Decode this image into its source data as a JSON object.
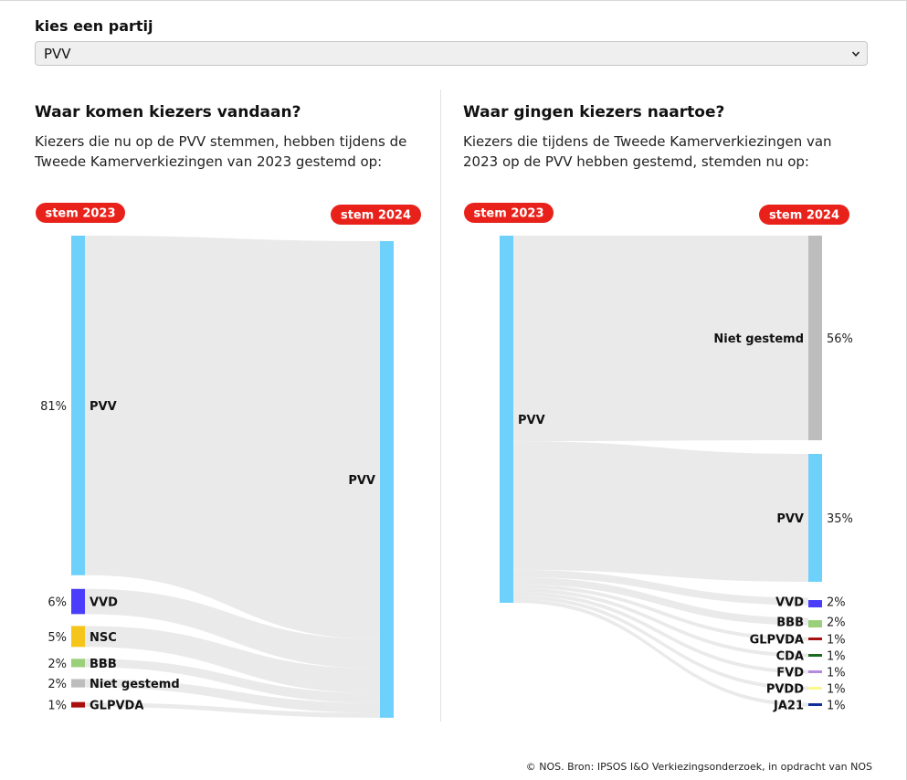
{
  "selector": {
    "label": "kies een partij",
    "value": "PVV"
  },
  "source": "© NOS. Bron: IPSOS I&O Verkiezingsonderzoek, in opdracht van NOS",
  "chart_data": [
    {
      "type": "sankey",
      "title": "Waar komen kiezers vandaan?",
      "subtitle": "Kiezers die nu op de PVV stemmen, hebben tijdens de Tweede Kamerverkiezingen van 2023 gestemd op:",
      "left_header": "stem 2023",
      "right_header": "stem 2024",
      "target": {
        "name": "PVV",
        "color": "#6dd1fc"
      },
      "sources": [
        {
          "name": "PVV",
          "value": 81,
          "label": "81%",
          "color": "#6dd1fc"
        },
        {
          "name": "VVD",
          "value": 6,
          "label": "6%",
          "color": "#4b3dfc"
        },
        {
          "name": "NSC",
          "value": 5,
          "label": "5%",
          "color": "#f6c51b"
        },
        {
          "name": "BBB",
          "value": 2,
          "label": "2%",
          "color": "#9bd07a"
        },
        {
          "name": "Niet gestemd",
          "value": 2,
          "label": "2%",
          "color": "#bdbdbd"
        },
        {
          "name": "GLPVDA",
          "value": 1,
          "label": "1%",
          "color": "#a90f0f"
        }
      ]
    },
    {
      "type": "sankey",
      "title": "Waar gingen kiezers naartoe?",
      "subtitle": "Kiezers die tijdens de Tweede Kamerverkiezingen van 2023 op de PVV hebben gestemd, stemden nu op:",
      "left_header": "stem 2023",
      "right_header": "stem 2024",
      "source": {
        "name": "PVV",
        "color": "#6dd1fc"
      },
      "targets": [
        {
          "name": "Niet gestemd",
          "value": 56,
          "label": "56%",
          "color": "#bdbdbd"
        },
        {
          "name": "PVV",
          "value": 35,
          "label": "35%",
          "color": "#6dd1fc"
        },
        {
          "name": "VVD",
          "value": 2,
          "label": "2%",
          "color": "#4b3dfc"
        },
        {
          "name": "BBB",
          "value": 2,
          "label": "2%",
          "color": "#9bd07a"
        },
        {
          "name": "GLPVDA",
          "value": 1,
          "label": "1%",
          "color": "#a90f0f"
        },
        {
          "name": "CDA",
          "value": 1,
          "label": "1%",
          "color": "#1c6b1c"
        },
        {
          "name": "FVD",
          "value": 1,
          "label": "1%",
          "color": "#b38ae0"
        },
        {
          "name": "PVDD",
          "value": 1,
          "label": "1%",
          "color": "#fcf78a"
        },
        {
          "name": "JA21",
          "value": 1,
          "label": "1%",
          "color": "#0d2f9a"
        }
      ]
    }
  ]
}
